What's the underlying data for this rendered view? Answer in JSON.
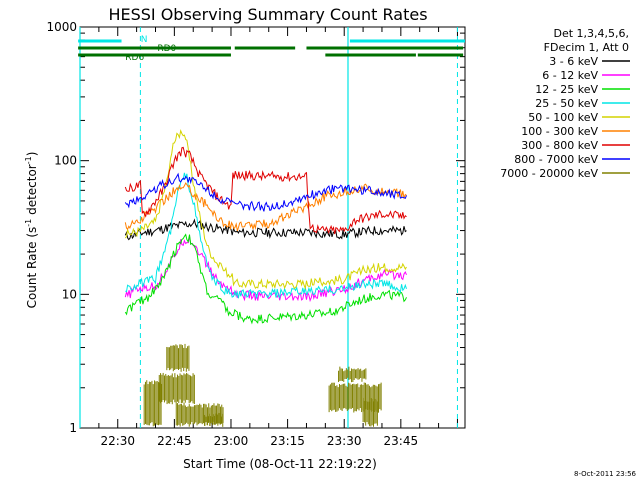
{
  "chart_data": {
    "type": "line",
    "title": "HESSI Observing Summary Count Rates",
    "xlabel": "Start Time (08-Oct-11 22:19:22)",
    "ylabel": "Count Rate (s",
    "ylabel_sup": "-1",
    "ylabel_tail": " detector",
    "ylabel_tail_sup": "-1",
    "ylabel_close": ")",
    "footer": "8-Oct-2011 23:56",
    "y_log": true,
    "ylim": [
      1,
      1000
    ],
    "x_minutes_after_2220_range": [
      0,
      102
    ],
    "x_ticks": [
      {
        "m": 10,
        "label": "22:30"
      },
      {
        "m": 25,
        "label": "22:45"
      },
      {
        "m": 40,
        "label": "23:00"
      },
      {
        "m": 55,
        "label": "23:15"
      },
      {
        "m": 70,
        "label": "23:30"
      },
      {
        "m": 85,
        "label": "23:45"
      }
    ],
    "y_ticks": [
      {
        "v": 1,
        "label": "1"
      },
      {
        "v": 10,
        "label": "10"
      },
      {
        "v": 100,
        "label": "100"
      },
      {
        "v": 1000,
        "label": "1000"
      }
    ],
    "legend": {
      "header": [
        "Det 1,3,4,5,6,",
        "FDecim 1, Att 0"
      ],
      "entries": [
        {
          "label": "3 - 6 keV",
          "color": "#000000"
        },
        {
          "label": "6 - 12 keV",
          "color": "#ff00ff"
        },
        {
          "label": "12 - 25 keV",
          "color": "#00e000"
        },
        {
          "label": "25 - 50 keV",
          "color": "#00e6e6"
        },
        {
          "label": "50 - 100 keV",
          "color": "#d4d400"
        },
        {
          "label": "100 - 300 keV",
          "color": "#ff8000"
        },
        {
          "label": "300 - 800 keV",
          "color": "#e00000"
        },
        {
          "label": "800 - 7000 keV",
          "color": "#0000ff"
        },
        {
          "label": "7000 - 20000 keV",
          "color": "#808000"
        }
      ]
    },
    "flags": [
      {
        "name": "N",
        "color": "#00e6e6",
        "segments": [
          [
            -0.5,
            11
          ],
          [
            71.5,
            102
          ]
        ]
      },
      {
        "name": "RD0",
        "color": "#007000",
        "segments": [
          [
            -0.5,
            40
          ],
          [
            41,
            57
          ],
          [
            60,
            101.5
          ]
        ]
      },
      {
        "name": "RD6",
        "color": "#007000",
        "segments": [
          [
            -0.5,
            40
          ],
          [
            65,
            89
          ],
          [
            89.5,
            101.5
          ]
        ]
      }
    ],
    "vlines_solid": [
      0,
      71
    ],
    "vlines_dashed": [
      16,
      100
    ],
    "series": [
      {
        "color": "#000000",
        "x": [
          12,
          17,
          20,
          24,
          27,
          30,
          34,
          40,
          41,
          50,
          60,
          70,
          73,
          78,
          80,
          86.5
        ],
        "y": [
          27,
          29,
          30,
          32,
          33,
          34,
          32,
          30,
          29,
          29,
          29,
          28,
          29,
          30,
          30,
          30
        ]
      },
      {
        "color": "#ff00ff",
        "x": [
          12,
          15,
          20,
          24,
          27,
          29,
          31,
          34,
          37,
          40,
          41,
          50,
          60,
          70,
          75,
          80,
          86.5
        ],
        "y": [
          9.5,
          11,
          11.5,
          17,
          25,
          26,
          22,
          16,
          12,
          11,
          10,
          9.5,
          9.5,
          11,
          12.5,
          14,
          14
        ]
      },
      {
        "color": "#00e000",
        "x": [
          12,
          15,
          18,
          22,
          26,
          28,
          30,
          32,
          34,
          37,
          40,
          41,
          44,
          48,
          55,
          60,
          65,
          70,
          74,
          80,
          86.5
        ],
        "y": [
          7.5,
          8.5,
          9.5,
          13,
          24,
          28,
          24,
          15,
          10,
          9,
          7,
          7.2,
          6.5,
          6.6,
          6.8,
          7,
          7.2,
          8,
          9,
          10,
          9.5
        ]
      },
      {
        "color": "#00e6e6",
        "x": [
          12,
          16,
          20,
          24,
          26,
          28,
          30,
          32,
          35,
          38,
          40,
          41,
          50,
          60,
          70,
          75,
          80,
          86.5
        ],
        "y": [
          11,
          12,
          13,
          30,
          60,
          80,
          50,
          25,
          13,
          11,
          10,
          10,
          10,
          10.5,
          11,
          12,
          12,
          11
        ]
      },
      {
        "color": "#d4d400",
        "x": [
          12,
          16,
          20,
          23,
          25,
          27,
          28,
          30,
          32,
          34,
          37,
          40,
          41,
          50,
          60,
          70,
          75,
          80,
          86.5
        ],
        "y": [
          28,
          30,
          35,
          70,
          140,
          170,
          150,
          70,
          35,
          22,
          16,
          14,
          12,
          12,
          12,
          13,
          15,
          16,
          16
        ]
      },
      {
        "color": "#ff8000",
        "x": [
          12,
          16,
          20,
          25,
          28,
          30,
          34,
          38,
          42,
          50,
          56,
          60,
          65,
          70,
          75,
          80,
          86.5
        ],
        "y": [
          32,
          36,
          44,
          60,
          64,
          58,
          45,
          34,
          32,
          34,
          40,
          46,
          54,
          58,
          62,
          60,
          55
        ]
      },
      {
        "color": "#e00000",
        "x": [
          12,
          14,
          16,
          16.5,
          18,
          22,
          25,
          27,
          29,
          32,
          36,
          40,
          40.5,
          50,
          60,
          61,
          64,
          70,
          73,
          80,
          86.5
        ],
        "y": [
          60,
          63,
          66,
          40,
          42,
          60,
          100,
          120,
          110,
          75,
          55,
          45,
          78,
          76,
          76,
          32,
          30,
          30,
          36,
          40,
          38
        ]
      },
      {
        "color": "#0000ff",
        "x": [
          12,
          16,
          20,
          24,
          27,
          29,
          31,
          34,
          38,
          42,
          50,
          55,
          60,
          65,
          70,
          75,
          80,
          86.5
        ],
        "y": [
          47,
          52,
          62,
          70,
          75,
          72,
          68,
          60,
          50,
          46,
          45,
          48,
          54,
          60,
          62,
          60,
          58,
          55
        ]
      }
    ],
    "olive_blocks": [
      {
        "x": [
          21,
          30.5
        ],
        "y": [
          1.5,
          2.6
        ]
      },
      {
        "x": [
          23,
          29
        ],
        "y": [
          2.6,
          4.3
        ]
      },
      {
        "x": [
          17,
          21.5
        ],
        "y": [
          1.02,
          2.3
        ]
      },
      {
        "x": [
          25.5,
          38
        ],
        "y": [
          1.02,
          1.55
        ]
      },
      {
        "x": [
          33,
          38
        ],
        "y": [
          1.02,
          1.3
        ]
      },
      {
        "x": [
          66,
          80
        ],
        "y": [
          1.3,
          2.2
        ]
      },
      {
        "x": [
          68.5,
          76
        ],
        "y": [
          2.2,
          2.9
        ]
      },
      {
        "x": [
          75,
          79
        ],
        "y": [
          1.02,
          1.7
        ]
      }
    ]
  }
}
